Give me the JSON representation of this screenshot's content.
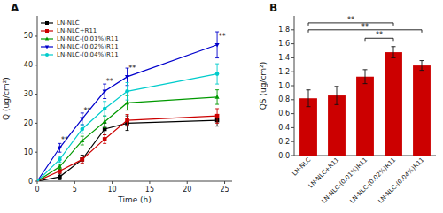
{
  "chart_data": [
    {
      "type": "line",
      "title": "A",
      "x_label": "Time (h)",
      "y_label": "Q (ug/cm²)",
      "xlim": [
        0,
        26
      ],
      "ylim": [
        0,
        57
      ],
      "xticks": [
        0,
        5,
        10,
        15,
        20,
        25
      ],
      "yticks": [
        0,
        10,
        20,
        30,
        40,
        50
      ],
      "legend": "upper left",
      "x": [
        0,
        3,
        6,
        9,
        12,
        24
      ],
      "series": [
        {
          "name": "LN-NLC",
          "color": "black",
          "marker": "square",
          "values": [
            0,
            1.5,
            7.5,
            18,
            20,
            21
          ],
          "errors": [
            0,
            1.0,
            1.5,
            2.0,
            2.5,
            2.0
          ]
        },
        {
          "name": "LN-NLC+R11",
          "color": "#cc0000",
          "marker": "square",
          "values": [
            0,
            3.5,
            7.5,
            14.5,
            21,
            22.5
          ],
          "errors": [
            0,
            0.8,
            1.2,
            1.5,
            2.0,
            2.5
          ]
        },
        {
          "name": "LN-NLC-(0.01%)R11",
          "color": "#009900",
          "marker": "triangle-up",
          "values": [
            0,
            5.0,
            14.0,
            20.5,
            27.0,
            29.0
          ],
          "errors": [
            0,
            0.8,
            1.5,
            2.0,
            2.5,
            2.5
          ]
        },
        {
          "name": "LN-NLC-(0.02%)R11",
          "color": "#0000cc",
          "marker": "triangle-down",
          "values": [
            0,
            11.5,
            21.5,
            31.0,
            36.0,
            47.0
          ],
          "errors": [
            0,
            1.5,
            2.0,
            2.5,
            3.0,
            4.5
          ]
        },
        {
          "name": "LN-NLC-(0.04%)R11",
          "color": "#00cccc",
          "marker": "circle",
          "values": [
            0,
            7.5,
            18.0,
            25.0,
            31.0,
            37.0
          ],
          "errors": [
            0,
            1.0,
            1.5,
            2.5,
            3.0,
            3.5
          ]
        }
      ],
      "annotations": [
        {
          "x": 3.2,
          "y": 13.5,
          "text": "**"
        },
        {
          "x": 6.2,
          "y": 23.5,
          "text": "**"
        },
        {
          "x": 9.2,
          "y": 33.5,
          "text": "**"
        },
        {
          "x": 12.2,
          "y": 38.0,
          "text": "**"
        },
        {
          "x": 24.2,
          "y": 49.0,
          "text": "**"
        }
      ]
    },
    {
      "type": "bar",
      "title": "B",
      "y_label": "QS (ug/cm²)",
      "ylim": [
        0,
        2.0
      ],
      "yticks": [
        {
          "value": 0,
          "label": "0.0"
        },
        0.2,
        0.4,
        0.6,
        0.8,
        {
          "value": 1,
          "label": "1.0"
        },
        1.2,
        1.4,
        1.6,
        1.8
      ],
      "color": "#cc0000",
      "categories": [
        "LN-NLC",
        "LN-NLC+R11",
        "LN-NLC-(0.01%)R11",
        "LN-NLC-(0.02%)R11",
        "LN-NLC-(0.04%)R11"
      ],
      "values": [
        0.82,
        0.86,
        1.13,
        1.48,
        1.29
      ],
      "errors": [
        0.12,
        0.13,
        0.1,
        0.08,
        0.07
      ],
      "brackets": [
        {
          "from": "LN-NLC",
          "to": "LN-NLC-(0.02%)R11",
          "y": 1.9,
          "label_y": 1.91,
          "text": "**"
        },
        {
          "from": "LN-NLC",
          "to": "LN-NLC-(0.04%)R11",
          "y": 1.8,
          "label_y": 1.81,
          "text": "**"
        },
        {
          "from": "LN-NLC-(0.01%)R11",
          "to": "LN-NLC-(0.02%)R11",
          "y": 1.68,
          "label_y": 1.69,
          "text": "**"
        }
      ]
    }
  ]
}
